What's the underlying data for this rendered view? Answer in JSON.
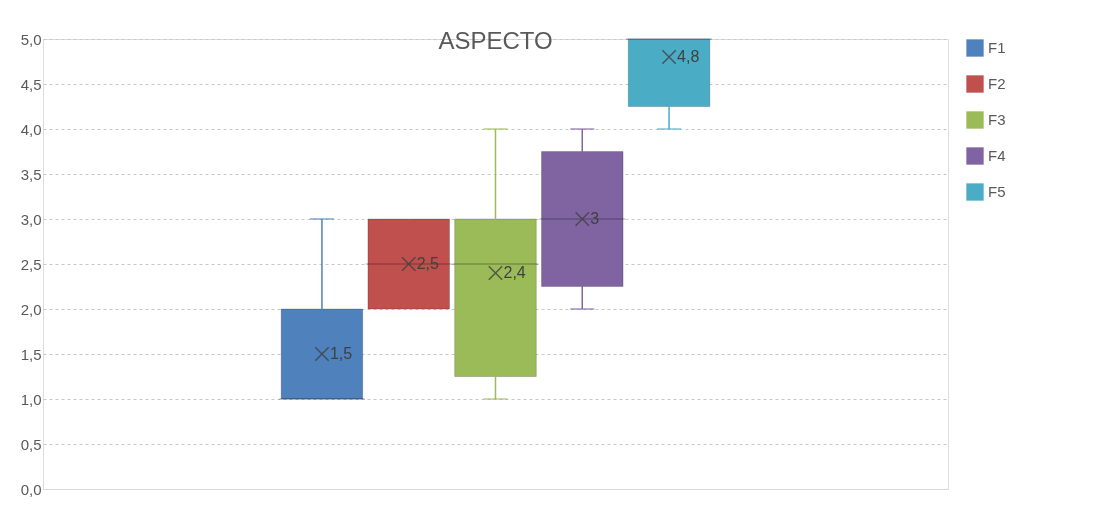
{
  "chart_data": {
    "type": "box",
    "title": "ASPECTO",
    "categories": [
      null
    ],
    "series": [
      {
        "name": "F1",
        "color": "#4f81bd",
        "boxes": [
          {
            "low": 1,
            "q1": 1,
            "median": 1,
            "q3": 2,
            "high": 3,
            "mean": 1.5
          }
        ],
        "value_labels": [
          "1,5"
        ]
      },
      {
        "name": "F2",
        "color": "#c0504d",
        "boxes": [
          {
            "low": 2,
            "q1": 2,
            "median": 2.5,
            "q3": 3,
            "high": 3,
            "mean": 2.5
          }
        ],
        "value_labels": [
          "2,5"
        ]
      },
      {
        "name": "F3",
        "color": "#9bbb59",
        "boxes": [
          {
            "low": 1,
            "q1": 1.25,
            "median": 2.5,
            "q3": 3,
            "high": 4,
            "mean": 2.4
          }
        ],
        "value_labels": [
          "2,4"
        ]
      },
      {
        "name": "F4",
        "color": "#8064a2",
        "boxes": [
          {
            "low": 2,
            "q1": 2.25,
            "median": 3,
            "q3": 3.75,
            "high": 4,
            "mean": 3
          }
        ],
        "value_labels": [
          "3"
        ]
      },
      {
        "name": "F5",
        "color": "#4bacc6",
        "boxes": [
          {
            "low": 4,
            "q1": 4.25,
            "median": 5,
            "q3": 5,
            "high": 5,
            "mean": 4.8
          }
        ],
        "value_labels": [
          "4,8"
        ]
      }
    ],
    "ylim": [
      0,
      5
    ],
    "yticks": [
      {
        "value": 0,
        "label": "0,0"
      },
      {
        "value": 0.5,
        "label": "0,5"
      },
      {
        "value": 1,
        "label": "1,0"
      },
      {
        "value": 1.5,
        "label": "1,5"
      },
      {
        "value": 2,
        "label": "2,0"
      },
      {
        "value": 2.5,
        "label": "2,5"
      },
      {
        "value": 3,
        "label": "3,0"
      },
      {
        "value": 3.5,
        "label": "3,5"
      },
      {
        "value": 4,
        "label": "4,0"
      },
      {
        "value": 4.5,
        "label": "4,5"
      },
      {
        "value": 5,
        "label": "5,0"
      }
    ],
    "grid": "y",
    "legend": "right",
    "marker": "cross"
  }
}
